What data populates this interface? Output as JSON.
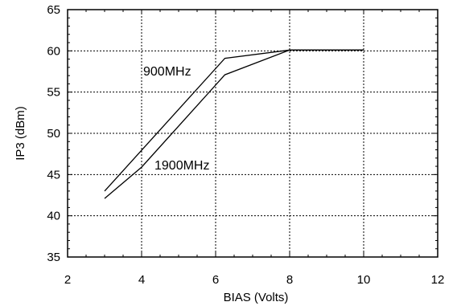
{
  "chart_data": {
    "type": "line",
    "title": "",
    "xlabel": "BIAS (Volts)",
    "ylabel": "IP3 (dBm)",
    "xlim": [
      2,
      12
    ],
    "ylim": [
      35,
      65
    ],
    "xticks": [
      "2",
      "4",
      "6",
      "8",
      "10",
      "12"
    ],
    "yticks": [
      "35",
      "40",
      "45",
      "50",
      "55",
      "60",
      "65"
    ],
    "grid": true,
    "series": [
      {
        "name": "900MHz",
        "color": "#000000",
        "x": [
          3,
          6.25,
          8,
          10
        ],
        "y": [
          43.0,
          59.1,
          60.1,
          60.1
        ]
      },
      {
        "name": "1900MHz",
        "color": "#000000",
        "x": [
          3,
          4,
          6.25,
          8,
          10
        ],
        "y": [
          42.1,
          45.9,
          57.1,
          60.1,
          60.1
        ]
      }
    ]
  }
}
